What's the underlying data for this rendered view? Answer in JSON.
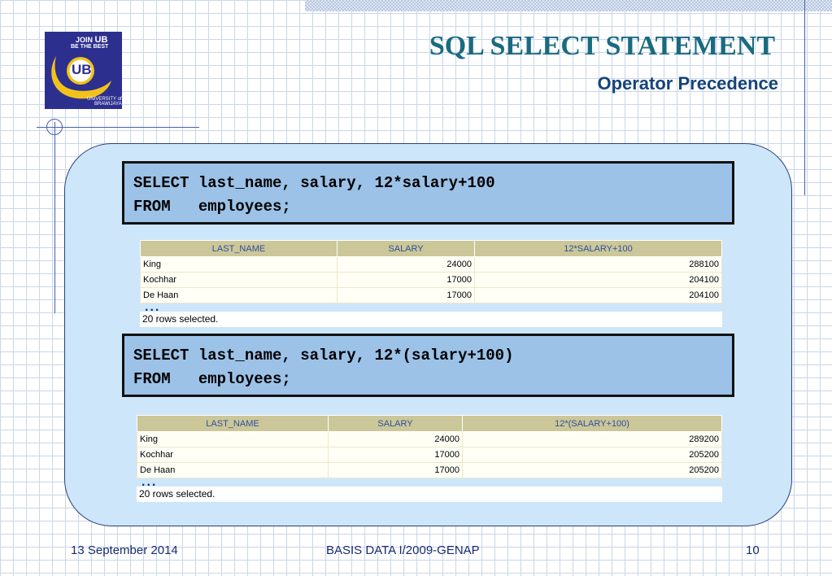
{
  "logo": {
    "join": "JOIN",
    "ub": "UB",
    "best": "BE THE BEST",
    "monogram": "UB",
    "univ_line1": "UNIVERSITY of",
    "univ_line2": "BRAWIJAYA"
  },
  "slide": {
    "title": "SQL SELECT STATEMENT",
    "subtitle": "Operator Precedence"
  },
  "query1": {
    "line1": "SELECT last_name, salary, 12*salary+100",
    "line2": "FROM   employees;"
  },
  "result1": {
    "columns": [
      "LAST_NAME",
      "SALARY",
      "12*SALARY+100"
    ],
    "rows": [
      [
        "King",
        "24000",
        "288100"
      ],
      [
        "Kochhar",
        "17000",
        "204100"
      ],
      [
        "De Haan",
        "17000",
        "204100"
      ]
    ],
    "ellipsis": "...",
    "status": "20 rows selected."
  },
  "query2": {
    "line1": "SELECT last_name, salary, 12*(salary+100)",
    "line2": "FROM   employees;"
  },
  "result2": {
    "columns": [
      "LAST_NAME",
      "SALARY",
      "12*(SALARY+100)"
    ],
    "rows": [
      [
        "King",
        "24000",
        "289200"
      ],
      [
        "Kochhar",
        "17000",
        "205200"
      ],
      [
        "De Haan",
        "17000",
        "205200"
      ]
    ],
    "ellipsis": "...",
    "status": "20 rows selected."
  },
  "footer": {
    "date": "13 September 2014",
    "course": "BASIS DATA I/2009-GENAP",
    "page": "10"
  },
  "colors": {
    "title": "#1a6a80",
    "subtitle": "#15437a",
    "panel": "#cde6fa",
    "code_box": "#9cc2e7",
    "table_header": "#ccc799",
    "logo_bg": "#2c2f8e",
    "logo_gold": "#f2c21b"
  }
}
